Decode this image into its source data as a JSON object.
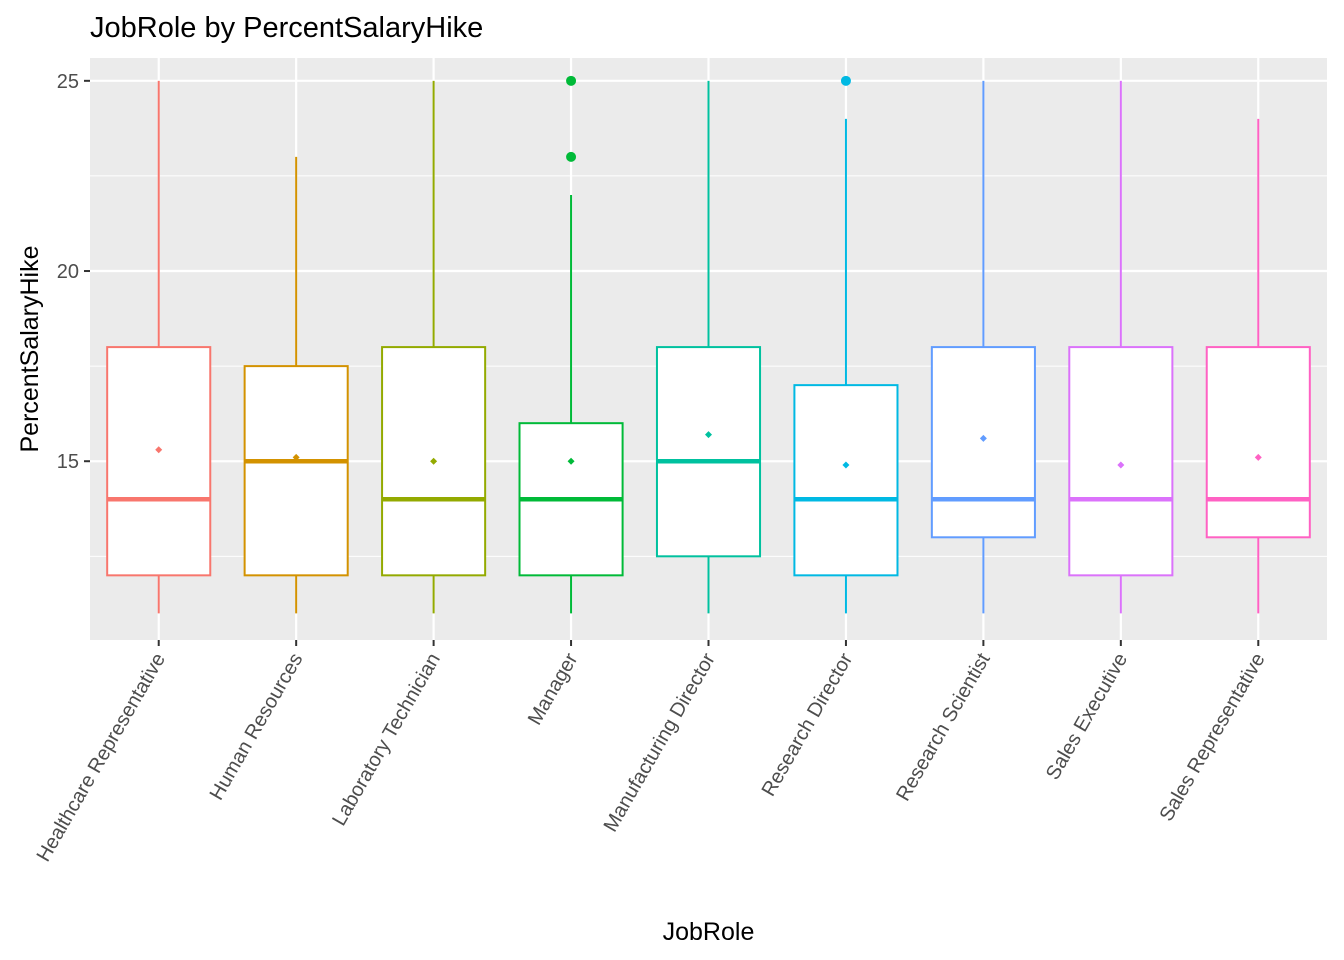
{
  "chart_data": {
    "type": "box",
    "title": "JobRole by PercentSalaryHike",
    "xlabel": "JobRole",
    "ylabel": "PercentSalaryHike",
    "ylim": [
      10.3,
      25.6
    ],
    "yticks": [
      15,
      20,
      25
    ],
    "grid": true,
    "legend": "none",
    "categories": [
      "Healthcare Representative",
      "Human Resources",
      "Laboratory Technician",
      "Manager",
      "Manufacturing Director",
      "Research Director",
      "Research Scientist",
      "Sales Executive",
      "Sales Representative"
    ],
    "boxes": [
      {
        "category": "Healthcare Representative",
        "min": 11,
        "q1": 12,
        "median": 14,
        "q3": 18,
        "max": 25,
        "mean": 15.3,
        "outliers": [],
        "color": "#F8766D"
      },
      {
        "category": "Human Resources",
        "min": 11,
        "q1": 12,
        "median": 15,
        "q3": 17.5,
        "max": 23,
        "mean": 15.1,
        "outliers": [],
        "color": "#D39200"
      },
      {
        "category": "Laboratory Technician",
        "min": 11,
        "q1": 12,
        "median": 14,
        "q3": 18,
        "max": 25,
        "mean": 15.0,
        "outliers": [],
        "color": "#93AA00"
      },
      {
        "category": "Manager",
        "min": 11,
        "q1": 12,
        "median": 14,
        "q3": 16,
        "max": 22,
        "mean": 15.0,
        "outliers": [
          23,
          25
        ],
        "color": "#00BA38"
      },
      {
        "category": "Manufacturing Director",
        "min": 11,
        "q1": 12.5,
        "median": 15,
        "q3": 18,
        "max": 25,
        "mean": 15.7,
        "outliers": [],
        "color": "#00C19F"
      },
      {
        "category": "Research Director",
        "min": 11,
        "q1": 12,
        "median": 14,
        "q3": 17,
        "max": 24,
        "mean": 14.9,
        "outliers": [
          25
        ],
        "color": "#00B9E3"
      },
      {
        "category": "Research Scientist",
        "min": 11,
        "q1": 13,
        "median": 14,
        "q3": 18,
        "max": 25,
        "mean": 15.6,
        "outliers": [],
        "color": "#619CFF"
      },
      {
        "category": "Sales Executive",
        "min": 11,
        "q1": 12,
        "median": 14,
        "q3": 18,
        "max": 25,
        "mean": 14.9,
        "outliers": [],
        "color": "#DB72FB"
      },
      {
        "category": "Sales Representative",
        "min": 11,
        "q1": 13,
        "median": 14,
        "q3": 18,
        "max": 24,
        "mean": 15.1,
        "outliers": [],
        "color": "#FF61C3"
      }
    ],
    "colors": {
      "panel_bg": "#EBEBEB",
      "grid_major": "#FFFFFF",
      "tick_text": "#4D4D4D",
      "tick_mark": "#333333"
    }
  }
}
